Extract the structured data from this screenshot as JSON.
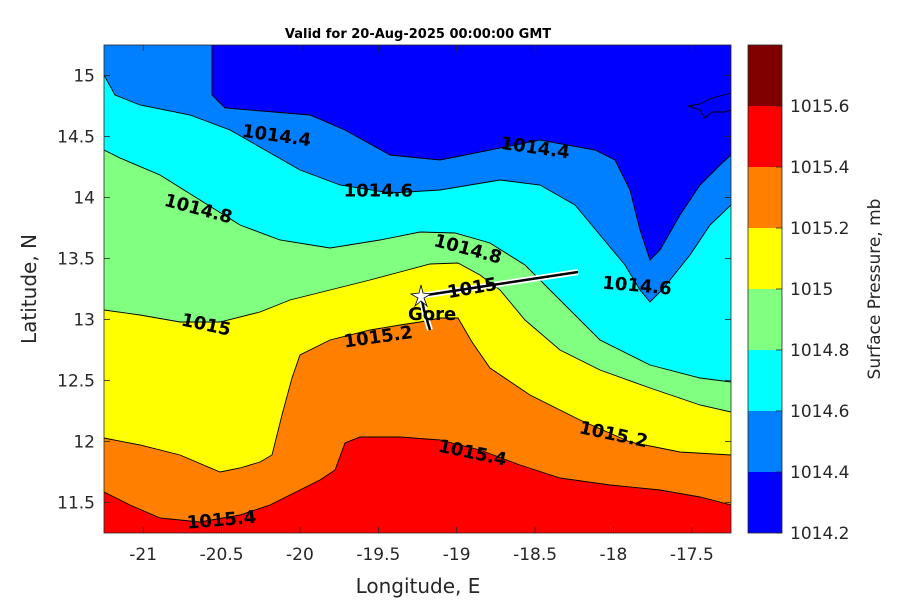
{
  "chart_data": {
    "type": "heatmap",
    "subtype": "filled-contour",
    "title": "Valid for 20-Aug-2025 00:00:00 GMT",
    "xlabel": "Longitude, E",
    "ylabel": "Latitude, N",
    "xlim": [
      -21.25,
      -17.25
    ],
    "ylim": [
      11.25,
      15.25
    ],
    "xticks": [
      -21,
      -20.5,
      -20,
      -19.5,
      -19,
      -18.5,
      -18,
      -17.5
    ],
    "xtick_labels": [
      "-21",
      "-20.5",
      "-20",
      "-19.5",
      "-19",
      "-18.5",
      "-18",
      "-17.5"
    ],
    "yticks": [
      11.5,
      12,
      12.5,
      13,
      13.5,
      14,
      14.5,
      15
    ],
    "ytick_labels": [
      "11.5",
      "12",
      "12.5",
      "13",
      "13.5",
      "14",
      "14.5",
      "15"
    ],
    "colorbar": {
      "label": "Surface Pressure, mb",
      "levels": [
        1014.2,
        1014.4,
        1014.6,
        1014.8,
        1015,
        1015.2,
        1015.4,
        1015.6
      ],
      "level_labels": [
        "1014.2",
        "1014.4",
        "1014.6",
        "1014.8",
        "1015",
        "1015.2",
        "1015.4",
        "1015.6"
      ],
      "colors": [
        "#0000ff",
        "#0080ff",
        "#00ffff",
        "#80ff80",
        "#ffff00",
        "#ff8000",
        "#ff0000",
        "#800000"
      ]
    },
    "contour_labels": [
      {
        "text": "1014.4",
        "lon": -20.15,
        "lat": 14.5
      },
      {
        "text": "1014.4",
        "lon": -18.5,
        "lat": 14.4
      },
      {
        "text": "1014.6",
        "lon": -19.5,
        "lat": 14.05
      },
      {
        "text": "1014.6",
        "lon": -17.85,
        "lat": 13.27
      },
      {
        "text": "1014.8",
        "lon": -20.65,
        "lat": 13.9
      },
      {
        "text": "1014.8",
        "lon": -18.93,
        "lat": 13.57
      },
      {
        "text": "1015",
        "lon": -20.6,
        "lat": 12.95
      },
      {
        "text": "1015",
        "lon": -18.9,
        "lat": 13.25
      },
      {
        "text": "1015.2",
        "lon": -19.5,
        "lat": 12.85
      },
      {
        "text": "1015.2",
        "lon": -18.0,
        "lat": 12.05
      },
      {
        "text": "1015.4",
        "lon": -18.9,
        "lat": 11.9
      },
      {
        "text": "1015.4",
        "lon": -20.5,
        "lat": 11.35
      }
    ],
    "ship": {
      "label": "Gore",
      "lon": -19.2,
      "lat": 13.05
    },
    "grid": false
  }
}
